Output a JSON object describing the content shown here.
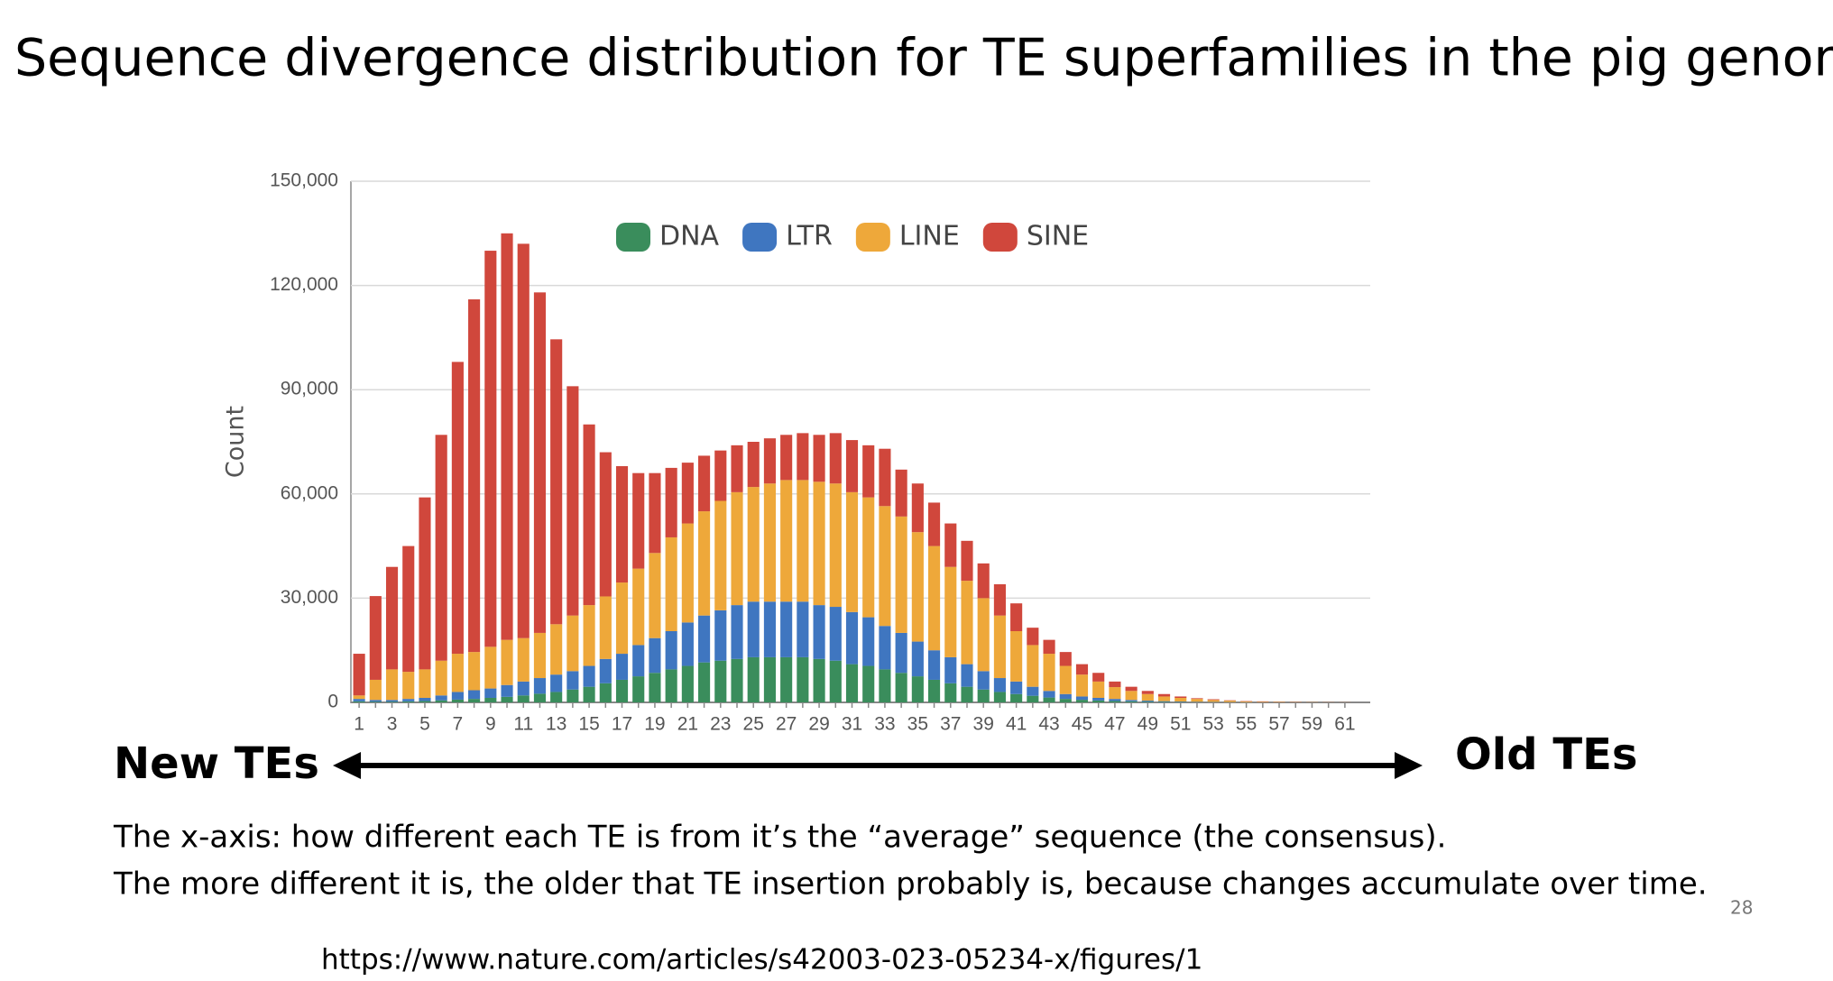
{
  "chart_data": {
    "type": "bar",
    "stacked": true,
    "title": "Sequence divergence distribution for TE superfamilies in the pig genome",
    "ylabel": "Count",
    "categories": [
      "1",
      null,
      "3",
      null,
      "5",
      null,
      "7",
      null,
      "9",
      null,
      "11",
      null,
      "13",
      null,
      "15",
      null,
      "17",
      null,
      "19",
      null,
      "21",
      null,
      "23",
      null,
      "25",
      null,
      "27",
      null,
      "29",
      null,
      "31",
      null,
      "33",
      null,
      "35",
      null,
      "37",
      null,
      "39",
      null,
      "41",
      null,
      "43",
      null,
      "45",
      null,
      "47",
      null,
      "49",
      null,
      "51",
      null,
      "53",
      null,
      "55",
      null,
      "57",
      null,
      "59",
      null,
      "61"
    ],
    "series": [
      {
        "name": "DNA",
        "color": "#3a8d5c",
        "values": [
          300,
          200,
          200,
          300,
          400,
          600,
          800,
          1000,
          1300,
          1600,
          2000,
          2500,
          3000,
          3700,
          4500,
          5500,
          6500,
          7500,
          8500,
          9500,
          10500,
          11500,
          12000,
          12500,
          13000,
          13000,
          13000,
          13000,
          12500,
          12000,
          11000,
          10500,
          9500,
          8500,
          7500,
          6500,
          5500,
          4500,
          3700,
          3000,
          2400,
          1900,
          1400,
          1000,
          750,
          550,
          400,
          300,
          200,
          150,
          100,
          70,
          50,
          35,
          25,
          15,
          10,
          7,
          5,
          3,
          2
        ]
      },
      {
        "name": "LTR",
        "color": "#3f76c0",
        "values": [
          700,
          500,
          500,
          700,
          900,
          1400,
          2200,
          2500,
          2700,
          3400,
          4000,
          4500,
          5000,
          5300,
          6000,
          7000,
          7500,
          9000,
          10000,
          11000,
          12500,
          13500,
          14500,
          15500,
          16000,
          16000,
          16000,
          16000,
          15500,
          15500,
          15000,
          14000,
          12500,
          11500,
          10000,
          8500,
          7500,
          6500,
          5300,
          4000,
          3600,
          2600,
          1900,
          1400,
          950,
          750,
          600,
          400,
          300,
          200,
          150,
          110,
          80,
          55,
          35,
          25,
          20,
          13,
          10,
          7,
          3
        ]
      },
      {
        "name": "LINE",
        "color": "#eea83a",
        "values": [
          1000,
          5800,
          8800,
          7800,
          8200,
          10000,
          11000,
          11000,
          12000,
          13000,
          12500,
          13000,
          14500,
          16000,
          17500,
          18000,
          20500,
          22000,
          24500,
          27000,
          28500,
          30000,
          31500,
          32500,
          33000,
          34000,
          35000,
          35000,
          35500,
          35500,
          34500,
          34500,
          34500,
          33500,
          31500,
          30000,
          26000,
          24000,
          21000,
          18000,
          14500,
          12000,
          10700,
          8100,
          6300,
          4700,
          3400,
          2600,
          1900,
          1350,
          1050,
          820,
          570,
          410,
          240,
          160,
          120,
          80,
          65,
          40,
          25
        ]
      },
      {
        "name": "SINE",
        "color": "#d0473c",
        "values": [
          12000,
          24100,
          29500,
          36200,
          49500,
          65000,
          84000,
          101500,
          114000,
          117000,
          113500,
          98000,
          82000,
          66000,
          52000,
          41500,
          33500,
          27500,
          23000,
          20000,
          17500,
          16000,
          14500,
          13500,
          13000,
          13000,
          13000,
          13500,
          13500,
          14500,
          15000,
          15000,
          16500,
          13500,
          14000,
          12500,
          12500,
          11500,
          10000,
          9000,
          8000,
          5000,
          4000,
          4000,
          3000,
          2500,
          1600,
          1200,
          900,
          700,
          400,
          200,
          200,
          100,
          100,
          100,
          50,
          50,
          20,
          30,
          20
        ]
      }
    ],
    "ylim": [
      0,
      150000
    ],
    "yticks": [
      0,
      {
        "value": 30000,
        "label": "30,000"
      },
      {
        "value": 60000,
        "label": "60,000"
      },
      {
        "value": 90000,
        "label": "90,000"
      },
      {
        "value": 120000,
        "label": "120,000"
      },
      {
        "value": 150000,
        "label": "150,000"
      }
    ],
    "grid": true,
    "legend": "top"
  },
  "arrow": {
    "left": "New TEs",
    "right": "Old TEs"
  },
  "caption": [
    "The x-axis: how different each TE is from it’s the “average” sequence (the consensus).",
    "The more different it is, the older that TE insertion probably is, because changes accumulate over time."
  ],
  "source": "https://www.nature.com/articles/s42003-023-05234-x/figures/1",
  "page_number": "28"
}
